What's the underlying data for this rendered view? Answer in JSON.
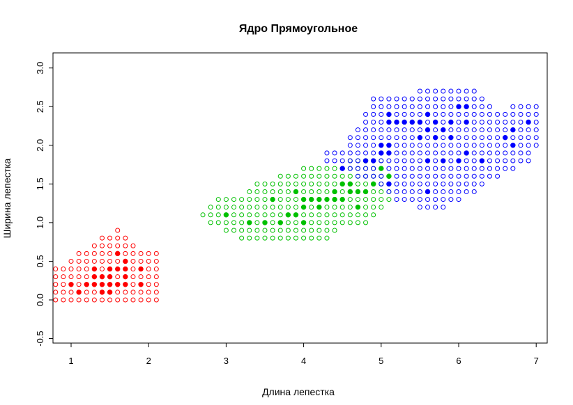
{
  "chart_data": {
    "type": "scatter",
    "title": "Ядро Прямоугольное",
    "xlabel": "Длина лепестка",
    "ylabel": "Ширина лепестка",
    "xlim": [
      0.8,
      7.1
    ],
    "ylim": [
      -0.5,
      3.1
    ],
    "xticks": [
      "1",
      "2",
      "3",
      "4",
      "5",
      "6",
      "7"
    ],
    "yticks": [
      "-0.5",
      "0.0",
      "0.5",
      "1.0",
      "1.5",
      "2.0",
      "2.5",
      "3.0"
    ],
    "grid": false,
    "legend": "none",
    "grid_step": 0.1,
    "series": [
      {
        "color": "#ff0000",
        "role": "classified-grid",
        "x_range": [
          0.8,
          2.1
        ],
        "y_range": [
          0.0,
          0.9
        ],
        "columns": [
          {
            "x": 0.8,
            "y": [
              0.0,
              0.4
            ]
          },
          {
            "x": 0.9,
            "y": [
              0.0,
              0.4
            ]
          },
          {
            "x": 1.0,
            "y": [
              0.0,
              0.5
            ]
          },
          {
            "x": 1.1,
            "y": [
              0.0,
              0.6
            ]
          },
          {
            "x": 1.2,
            "y": [
              0.0,
              0.6
            ]
          },
          {
            "x": 1.3,
            "y": [
              0.0,
              0.7
            ]
          },
          {
            "x": 1.4,
            "y": [
              0.0,
              0.8
            ]
          },
          {
            "x": 1.5,
            "y": [
              0.0,
              0.8
            ]
          },
          {
            "x": 1.6,
            "y": [
              0.0,
              0.9
            ]
          },
          {
            "x": 1.7,
            "y": [
              0.0,
              0.8
            ]
          },
          {
            "x": 1.8,
            "y": [
              0.0,
              0.7
            ]
          },
          {
            "x": 1.9,
            "y": [
              0.0,
              0.6
            ]
          },
          {
            "x": 2.0,
            "y": [
              0.0,
              0.6
            ]
          },
          {
            "x": 2.1,
            "y": [
              0.0,
              0.6
            ]
          }
        ]
      },
      {
        "color": "#00c000",
        "role": "classified-grid",
        "x_range": [
          2.7,
          5.1
        ],
        "y_range": [
          0.8,
          1.8
        ],
        "columns": [
          {
            "x": 2.7,
            "y": [
              1.1,
              1.1
            ]
          },
          {
            "x": 2.8,
            "y": [
              1.0,
              1.2
            ]
          },
          {
            "x": 2.9,
            "y": [
              1.0,
              1.3
            ]
          },
          {
            "x": 3.0,
            "y": [
              0.9,
              1.3
            ]
          },
          {
            "x": 3.1,
            "y": [
              0.9,
              1.3
            ]
          },
          {
            "x": 3.2,
            "y": [
              0.8,
              1.3
            ]
          },
          {
            "x": 3.3,
            "y": [
              0.8,
              1.4
            ]
          },
          {
            "x": 3.4,
            "y": [
              0.8,
              1.5
            ]
          },
          {
            "x": 3.5,
            "y": [
              0.8,
              1.5
            ]
          },
          {
            "x": 3.6,
            "y": [
              0.8,
              1.5
            ]
          },
          {
            "x": 3.7,
            "y": [
              0.8,
              1.6
            ]
          },
          {
            "x": 3.8,
            "y": [
              0.8,
              1.6
            ]
          },
          {
            "x": 3.9,
            "y": [
              0.8,
              1.6
            ]
          },
          {
            "x": 4.0,
            "y": [
              0.8,
              1.7
            ]
          },
          {
            "x": 4.1,
            "y": [
              0.8,
              1.7
            ]
          },
          {
            "x": 4.2,
            "y": [
              0.8,
              1.7
            ]
          },
          {
            "x": 4.3,
            "y": [
              0.8,
              1.7
            ]
          },
          {
            "x": 4.4,
            "y": [
              0.9,
              1.7
            ]
          },
          {
            "x": 4.5,
            "y": [
              1.0,
              1.7
            ]
          },
          {
            "x": 4.6,
            "y": [
              1.0,
              1.8
            ]
          },
          {
            "x": 4.7,
            "y": [
              1.0,
              1.8
            ]
          },
          {
            "x": 4.8,
            "y": [
              1.0,
              1.8
            ]
          },
          {
            "x": 4.9,
            "y": [
              1.1,
              1.8
            ]
          },
          {
            "x": 5.0,
            "y": [
              1.2,
              1.8
            ]
          },
          {
            "x": 5.1,
            "y": [
              1.3,
              1.6
            ]
          }
        ]
      },
      {
        "color": "#0000ff",
        "role": "classified-grid",
        "x_range": [
          4.3,
          7.0
        ],
        "y_range": [
          1.2,
          2.7
        ],
        "columns": [
          {
            "x": 4.3,
            "y": [
              1.8,
              1.9
            ]
          },
          {
            "x": 4.4,
            "y": [
              1.8,
              1.9
            ]
          },
          {
            "x": 4.5,
            "y": [
              1.7,
              1.9
            ]
          },
          {
            "x": 4.6,
            "y": [
              1.7,
              2.1
            ]
          },
          {
            "x": 4.7,
            "y": [
              1.6,
              2.2
            ]
          },
          {
            "x": 4.8,
            "y": [
              1.6,
              2.4
            ]
          },
          {
            "x": 4.9,
            "y": [
              1.5,
              2.6
            ]
          },
          {
            "x": 5.0,
            "y": [
              1.5,
              2.6
            ]
          },
          {
            "x": 5.1,
            "y": [
              1.4,
              2.6
            ]
          },
          {
            "x": 5.2,
            "y": [
              1.3,
              2.6
            ]
          },
          {
            "x": 5.3,
            "y": [
              1.3,
              2.6
            ]
          },
          {
            "x": 5.4,
            "y": [
              1.3,
              2.6
            ]
          },
          {
            "x": 5.5,
            "y": [
              1.2,
              2.7
            ]
          },
          {
            "x": 5.6,
            "y": [
              1.2,
              2.7
            ]
          },
          {
            "x": 5.7,
            "y": [
              1.2,
              2.7
            ]
          },
          {
            "x": 5.8,
            "y": [
              1.2,
              2.7
            ]
          },
          {
            "x": 5.9,
            "y": [
              1.3,
              2.7
            ]
          },
          {
            "x": 6.0,
            "y": [
              1.3,
              2.7
            ]
          },
          {
            "x": 6.1,
            "y": [
              1.4,
              2.7
            ]
          },
          {
            "x": 6.2,
            "y": [
              1.4,
              2.7
            ]
          },
          {
            "x": 6.3,
            "y": [
              1.5,
              2.6
            ]
          },
          {
            "x": 6.4,
            "y": [
              1.6,
              2.5
            ]
          },
          {
            "x": 6.5,
            "y": [
              1.6,
              2.4
            ]
          },
          {
            "x": 6.6,
            "y": [
              1.7,
              2.4
            ]
          },
          {
            "x": 6.7,
            "y": [
              1.7,
              2.5
            ]
          },
          {
            "x": 6.8,
            "y": [
              1.8,
              2.5
            ]
          },
          {
            "x": 6.9,
            "y": [
              1.8,
              2.5
            ]
          },
          {
            "x": 7.0,
            "y": [
              2.0,
              2.5
            ]
          }
        ]
      },
      {
        "color": "#ff0000",
        "role": "training-points",
        "points": [
          [
            1.0,
            0.2
          ],
          [
            1.1,
            0.1
          ],
          [
            1.2,
            0.2
          ],
          [
            1.3,
            0.2
          ],
          [
            1.3,
            0.3
          ],
          [
            1.3,
            0.4
          ],
          [
            1.4,
            0.1
          ],
          [
            1.4,
            0.2
          ],
          [
            1.4,
            0.3
          ],
          [
            1.5,
            0.1
          ],
          [
            1.5,
            0.2
          ],
          [
            1.5,
            0.3
          ],
          [
            1.5,
            0.4
          ],
          [
            1.6,
            0.2
          ],
          [
            1.6,
            0.4
          ],
          [
            1.6,
            0.6
          ],
          [
            1.7,
            0.2
          ],
          [
            1.7,
            0.3
          ],
          [
            1.7,
            0.4
          ],
          [
            1.7,
            0.5
          ],
          [
            1.9,
            0.2
          ],
          [
            1.9,
            0.4
          ]
        ]
      },
      {
        "color": "#00c000",
        "role": "training-points",
        "points": [
          [
            3.0,
            1.1
          ],
          [
            3.3,
            1.0
          ],
          [
            3.5,
            1.0
          ],
          [
            3.6,
            1.3
          ],
          [
            3.7,
            1.0
          ],
          [
            3.8,
            1.1
          ],
          [
            3.9,
            1.1
          ],
          [
            3.9,
            1.4
          ],
          [
            4.0,
            1.0
          ],
          [
            4.0,
            1.2
          ],
          [
            4.0,
            1.3
          ],
          [
            4.1,
            1.3
          ],
          [
            4.2,
            1.2
          ],
          [
            4.2,
            1.3
          ],
          [
            4.3,
            1.3
          ],
          [
            4.4,
            1.3
          ],
          [
            4.4,
            1.4
          ],
          [
            4.5,
            1.3
          ],
          [
            4.5,
            1.5
          ],
          [
            4.6,
            1.4
          ],
          [
            4.6,
            1.5
          ],
          [
            4.7,
            1.2
          ],
          [
            4.7,
            1.4
          ],
          [
            4.8,
            1.4
          ],
          [
            4.8,
            1.8
          ],
          [
            4.9,
            1.5
          ],
          [
            5.0,
            1.7
          ],
          [
            5.1,
            1.6
          ]
        ]
      },
      {
        "color": "#0000ff",
        "role": "training-points",
        "points": [
          [
            4.5,
            1.7
          ],
          [
            4.8,
            1.8
          ],
          [
            4.9,
            1.8
          ],
          [
            5.0,
            1.9
          ],
          [
            5.0,
            2.0
          ],
          [
            5.1,
            1.5
          ],
          [
            5.1,
            1.9
          ],
          [
            5.1,
            2.0
          ],
          [
            5.1,
            2.3
          ],
          [
            5.1,
            2.4
          ],
          [
            5.2,
            2.3
          ],
          [
            5.3,
            2.3
          ],
          [
            5.4,
            2.3
          ],
          [
            5.5,
            2.1
          ],
          [
            5.5,
            2.3
          ],
          [
            5.6,
            1.4
          ],
          [
            5.6,
            1.8
          ],
          [
            5.6,
            2.2
          ],
          [
            5.6,
            2.4
          ],
          [
            5.7,
            2.1
          ],
          [
            5.7,
            2.3
          ],
          [
            5.8,
            1.8
          ],
          [
            5.8,
            2.2
          ],
          [
            5.9,
            2.1
          ],
          [
            5.9,
            2.3
          ],
          [
            6.0,
            1.8
          ],
          [
            6.0,
            2.5
          ],
          [
            6.1,
            2.5
          ],
          [
            6.1,
            1.9
          ],
          [
            6.1,
            2.3
          ],
          [
            6.3,
            1.8
          ],
          [
            6.6,
            2.1
          ],
          [
            6.7,
            2.0
          ],
          [
            6.7,
            2.2
          ],
          [
            6.9,
            2.3
          ]
        ]
      }
    ]
  }
}
